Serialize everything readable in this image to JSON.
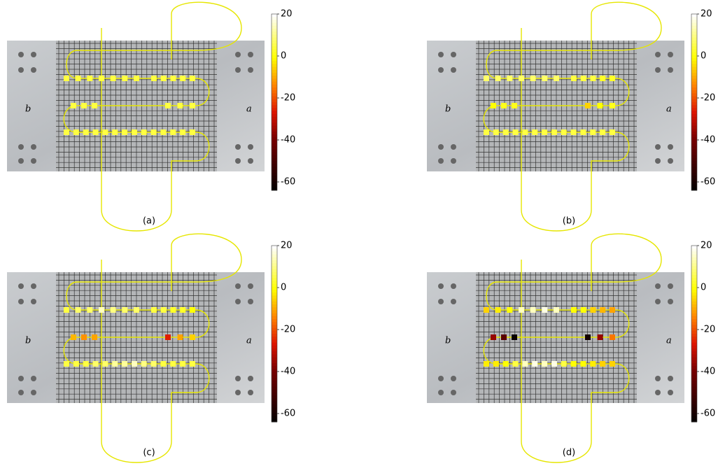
{
  "colorbar": {
    "lim": [
      -64,
      20
    ],
    "ticks": [
      20,
      0,
      -20,
      -40,
      -60
    ]
  },
  "plate_labels": {
    "left": "b",
    "right": "a"
  },
  "panels": [
    {
      "label": "(a)",
      "rows": [
        [
          [
            5,
            5,
            5,
            5,
            5,
            5,
            5
          ],
          [
            5,
            5,
            5,
            5,
            5
          ]
        ],
        [
          [
            5,
            5,
            5
          ],
          [
            5,
            5,
            5
          ]
        ],
        [
          [
            5,
            5,
            5,
            5,
            5,
            5,
            5,
            5,
            5,
            5,
            5,
            5,
            5,
            5
          ]
        ]
      ]
    },
    {
      "label": "(b)",
      "rows": [
        [
          [
            8,
            8,
            8,
            8,
            8,
            8,
            8
          ],
          [
            5,
            5,
            5,
            3,
            3
          ]
        ],
        [
          [
            0,
            2,
            2
          ],
          [
            -5,
            0,
            2
          ]
        ],
        [
          [
            5,
            5,
            5,
            5,
            5,
            5,
            5,
            5,
            5,
            5,
            5,
            5,
            5,
            5
          ]
        ]
      ]
    },
    {
      "label": "(c)",
      "rows": [
        [
          [
            5,
            8,
            8,
            15,
            10,
            8,
            8
          ],
          [
            5,
            5,
            3,
            3,
            0
          ]
        ],
        [
          [
            -8,
            -12,
            -10
          ],
          [
            -25,
            -10,
            -5
          ]
        ],
        [
          [
            5,
            5,
            5,
            8,
            8,
            12,
            12,
            15,
            10,
            8,
            5,
            5,
            5,
            5
          ]
        ]
      ]
    },
    {
      "label": "(d)",
      "rows": [
        [
          [
            -5,
            -2,
            0,
            15,
            15,
            18,
            15
          ],
          [
            0,
            0,
            -5,
            -8,
            -10
          ]
        ],
        [
          [
            -35,
            -45,
            -62
          ],
          [
            -60,
            -35,
            -15
          ]
        ],
        [
          [
            -2,
            -2,
            0,
            5,
            15,
            18,
            15,
            18,
            5,
            0,
            0,
            -2,
            -5,
            -5
          ]
        ]
      ]
    }
  ]
}
